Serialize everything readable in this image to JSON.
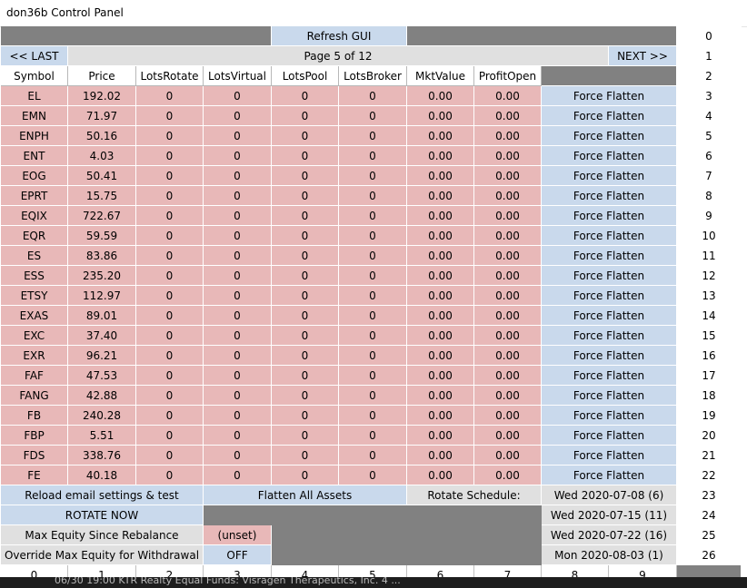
{
  "window": {
    "title": "don36b Control Panel"
  },
  "toolbar": {
    "refresh_label": "Refresh GUI",
    "last_label": "<< LAST",
    "next_label": "NEXT >>",
    "page_label": "Page 5 of 12"
  },
  "columns": [
    "Symbol",
    "Price",
    "LotsRotate",
    "LotsVirtual",
    "LotsPool",
    "LotsBroker",
    "MktValue",
    "ProfitOpen"
  ],
  "force_flatten_label": "Force Flatten",
  "rows": [
    {
      "symbol": "EL",
      "price": "192.02",
      "lots_rotate": "0",
      "lots_virtual": "0",
      "lots_pool": "0",
      "lots_broker": "0",
      "mkt_value": "0.00",
      "profit_open": "0.00"
    },
    {
      "symbol": "EMN",
      "price": "71.97",
      "lots_rotate": "0",
      "lots_virtual": "0",
      "lots_pool": "0",
      "lots_broker": "0",
      "mkt_value": "0.00",
      "profit_open": "0.00"
    },
    {
      "symbol": "ENPH",
      "price": "50.16",
      "lots_rotate": "0",
      "lots_virtual": "0",
      "lots_pool": "0",
      "lots_broker": "0",
      "mkt_value": "0.00",
      "profit_open": "0.00"
    },
    {
      "symbol": "ENT",
      "price": "4.03",
      "lots_rotate": "0",
      "lots_virtual": "0",
      "lots_pool": "0",
      "lots_broker": "0",
      "mkt_value": "0.00",
      "profit_open": "0.00"
    },
    {
      "symbol": "EOG",
      "price": "50.41",
      "lots_rotate": "0",
      "lots_virtual": "0",
      "lots_pool": "0",
      "lots_broker": "0",
      "mkt_value": "0.00",
      "profit_open": "0.00"
    },
    {
      "symbol": "EPRT",
      "price": "15.75",
      "lots_rotate": "0",
      "lots_virtual": "0",
      "lots_pool": "0",
      "lots_broker": "0",
      "mkt_value": "0.00",
      "profit_open": "0.00"
    },
    {
      "symbol": "EQIX",
      "price": "722.67",
      "lots_rotate": "0",
      "lots_virtual": "0",
      "lots_pool": "0",
      "lots_broker": "0",
      "mkt_value": "0.00",
      "profit_open": "0.00"
    },
    {
      "symbol": "EQR",
      "price": "59.59",
      "lots_rotate": "0",
      "lots_virtual": "0",
      "lots_pool": "0",
      "lots_broker": "0",
      "mkt_value": "0.00",
      "profit_open": "0.00"
    },
    {
      "symbol": "ES",
      "price": "83.86",
      "lots_rotate": "0",
      "lots_virtual": "0",
      "lots_pool": "0",
      "lots_broker": "0",
      "mkt_value": "0.00",
      "profit_open": "0.00"
    },
    {
      "symbol": "ESS",
      "price": "235.20",
      "lots_rotate": "0",
      "lots_virtual": "0",
      "lots_pool": "0",
      "lots_broker": "0",
      "mkt_value": "0.00",
      "profit_open": "0.00"
    },
    {
      "symbol": "ETSY",
      "price": "112.97",
      "lots_rotate": "0",
      "lots_virtual": "0",
      "lots_pool": "0",
      "lots_broker": "0",
      "mkt_value": "0.00",
      "profit_open": "0.00"
    },
    {
      "symbol": "EXAS",
      "price": "89.01",
      "lots_rotate": "0",
      "lots_virtual": "0",
      "lots_pool": "0",
      "lots_broker": "0",
      "mkt_value": "0.00",
      "profit_open": "0.00"
    },
    {
      "symbol": "EXC",
      "price": "37.40",
      "lots_rotate": "0",
      "lots_virtual": "0",
      "lots_pool": "0",
      "lots_broker": "0",
      "mkt_value": "0.00",
      "profit_open": "0.00"
    },
    {
      "symbol": "EXR",
      "price": "96.21",
      "lots_rotate": "0",
      "lots_virtual": "0",
      "lots_pool": "0",
      "lots_broker": "0",
      "mkt_value": "0.00",
      "profit_open": "0.00"
    },
    {
      "symbol": "FAF",
      "price": "47.53",
      "lots_rotate": "0",
      "lots_virtual": "0",
      "lots_pool": "0",
      "lots_broker": "0",
      "mkt_value": "0.00",
      "profit_open": "0.00"
    },
    {
      "symbol": "FANG",
      "price": "42.88",
      "lots_rotate": "0",
      "lots_virtual": "0",
      "lots_pool": "0",
      "lots_broker": "0",
      "mkt_value": "0.00",
      "profit_open": "0.00"
    },
    {
      "symbol": "FB",
      "price": "240.28",
      "lots_rotate": "0",
      "lots_virtual": "0",
      "lots_pool": "0",
      "lots_broker": "0",
      "mkt_value": "0.00",
      "profit_open": "0.00"
    },
    {
      "symbol": "FBP",
      "price": "5.51",
      "lots_rotate": "0",
      "lots_virtual": "0",
      "lots_pool": "0",
      "lots_broker": "0",
      "mkt_value": "0.00",
      "profit_open": "0.00"
    },
    {
      "symbol": "FDS",
      "price": "338.76",
      "lots_rotate": "0",
      "lots_virtual": "0",
      "lots_pool": "0",
      "lots_broker": "0",
      "mkt_value": "0.00",
      "profit_open": "0.00"
    },
    {
      "symbol": "FE",
      "price": "40.18",
      "lots_rotate": "0",
      "lots_virtual": "0",
      "lots_pool": "0",
      "lots_broker": "0",
      "mkt_value": "0.00",
      "profit_open": "0.00"
    }
  ],
  "controls": {
    "reload_label": "Reload email settings & test",
    "flatten_all_label": "Flatten All Assets",
    "rotate_schedule_label": "Rotate Schedule:",
    "rotate_now_label": "ROTATE NOW",
    "max_equity_label": "Max Equity Since Rebalance",
    "max_equity_value": "(unset)",
    "override_label": "Override Max Equity for Withdrawal",
    "override_value": "OFF",
    "schedule": [
      "Wed 2020-07-08 (6)",
      "Wed 2020-07-15 (11)",
      "Wed 2020-07-22 (16)",
      "Mon 2020-08-03 (1)"
    ]
  },
  "row_index": [
    "0",
    "1",
    "2",
    "3",
    "4",
    "5",
    "6",
    "7",
    "8",
    "9",
    "10",
    "11",
    "12",
    "13",
    "14",
    "15",
    "16",
    "17",
    "18",
    "19",
    "20",
    "21",
    "22",
    "23",
    "24",
    "25",
    "26"
  ],
  "col_index": [
    "0",
    "1",
    "2",
    "3",
    "4",
    "5",
    "6",
    "7",
    "8",
    "9"
  ],
  "background_text": "06/30 19:00 KTR Realty Equal Funds: Visragen Therapeutics, Inc. 4 ...",
  "colors": {
    "cell_pink": "#e8b8b8",
    "cell_blue": "#c9d9ec",
    "gray": "#818181"
  }
}
